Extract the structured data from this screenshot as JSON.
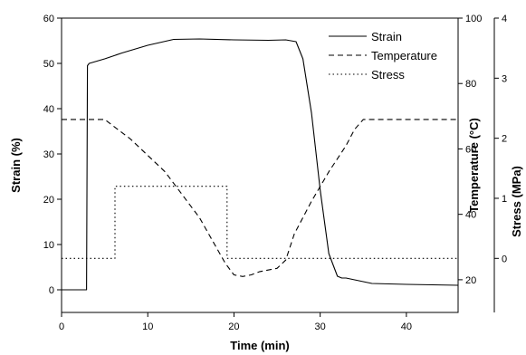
{
  "chart_data": {
    "type": "line",
    "title": "",
    "xlabel": "Time (min)",
    "xlim": [
      0,
      46
    ],
    "x_ticks": [
      0,
      10,
      20,
      30,
      40
    ],
    "axes": {
      "strain": {
        "label": "Strain (%)",
        "range": [
          -5,
          60
        ],
        "ticks": [
          0,
          10,
          20,
          30,
          40,
          50,
          60
        ]
      },
      "temperature": {
        "label": "Temperature (°C)",
        "range": [
          10,
          100
        ],
        "ticks": [
          20,
          40,
          60,
          80,
          100
        ]
      },
      "stress": {
        "label": "Stress (MPa)",
        "range": [
          -0.9,
          4
        ],
        "ticks": [
          0,
          1,
          2,
          3,
          4
        ]
      }
    },
    "grid": false,
    "legend_position": "top-right",
    "series": [
      {
        "name": "Strain",
        "axis": "strain",
        "style": "solid",
        "x": [
          0,
          2.9,
          3.0,
          3.2,
          5,
          7,
          10,
          13,
          16,
          20,
          24,
          26,
          27.2,
          28,
          29,
          30,
          31,
          32,
          32.5,
          33,
          34,
          36,
          40,
          46
        ],
        "y": [
          0,
          0,
          49.5,
          50,
          51,
          52.3,
          54,
          55.3,
          55.4,
          55.2,
          55.1,
          55.2,
          54.8,
          51,
          39,
          22,
          8,
          3,
          2.6,
          2.6,
          2.2,
          1.4,
          1.2,
          1.0
        ]
      },
      {
        "name": "Temperature",
        "axis": "temperature",
        "style": "dashed",
        "x": [
          0,
          5,
          8,
          12,
          16,
          19,
          20,
          21,
          22,
          23,
          25,
          26,
          27,
          29,
          31,
          33,
          34,
          35,
          40,
          46
        ],
        "y": [
          69,
          69,
          63,
          53,
          39,
          25,
          21.5,
          21,
          21.5,
          22.5,
          23.5,
          26,
          34,
          44,
          53,
          61,
          66,
          69,
          69,
          69
        ]
      },
      {
        "name": "Stress",
        "axis": "stress",
        "style": "dotted",
        "x": [
          0,
          6.2,
          6.2,
          19.2,
          19.2,
          46
        ],
        "y": [
          0,
          0,
          1.2,
          1.2,
          0,
          0
        ]
      }
    ]
  }
}
